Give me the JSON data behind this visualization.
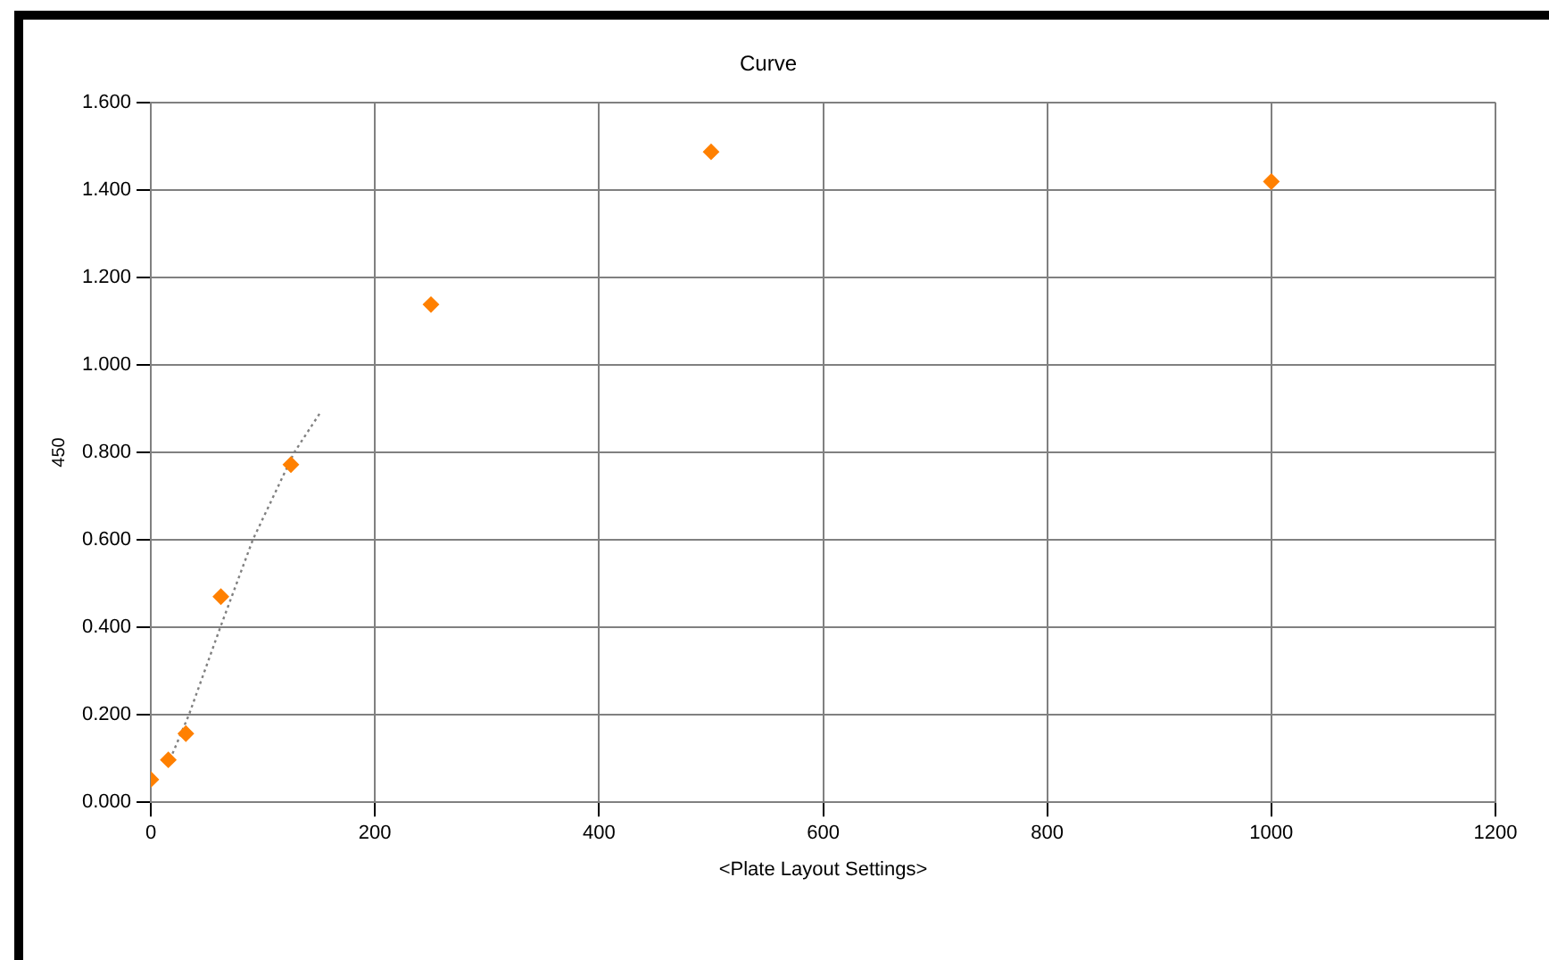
{
  "chart_data": {
    "type": "scatter",
    "title": "Curve",
    "xlabel": "<Plate Layout Settings>",
    "ylabel": "450",
    "series": [
      {
        "color": "#ff8000",
        "marker": "diamond",
        "x": [
          0,
          15.6,
          31.25,
          62.5,
          125,
          250,
          500,
          1000
        ],
        "values": [
          0.052,
          0.097,
          0.157,
          0.47,
          0.772,
          1.138,
          1.487,
          1.419
        ]
      },
      {
        "type": "line",
        "color": "#808080",
        "line_style": "dotted",
        "marker": "none",
        "x": [
          15,
          34,
          62,
          91,
          128,
          151
        ],
        "values": [
          0.085,
          0.2,
          0.4,
          0.6,
          0.8,
          0.89
        ]
      }
    ],
    "xlim": [
      0,
      1200
    ],
    "xticks": [
      0,
      200,
      400,
      600,
      800,
      1000,
      1200
    ],
    "ylim": [
      0,
      1.6
    ],
    "yticks": [
      {
        "value": 0,
        "label": "0.000"
      },
      {
        "value": 0.2,
        "label": "0.200"
      },
      {
        "value": 0.4,
        "label": "0.400"
      },
      {
        "value": 0.6,
        "label": "0.600"
      },
      {
        "value": 0.8,
        "label": "0.800"
      },
      {
        "value": 1,
        "label": "1.000"
      },
      {
        "value": 1.2,
        "label": "1.200"
      },
      {
        "value": 1.4,
        "label": "1.400"
      },
      {
        "value": 1.6,
        "label": "1.600"
      }
    ],
    "grid": true,
    "legend": false
  }
}
